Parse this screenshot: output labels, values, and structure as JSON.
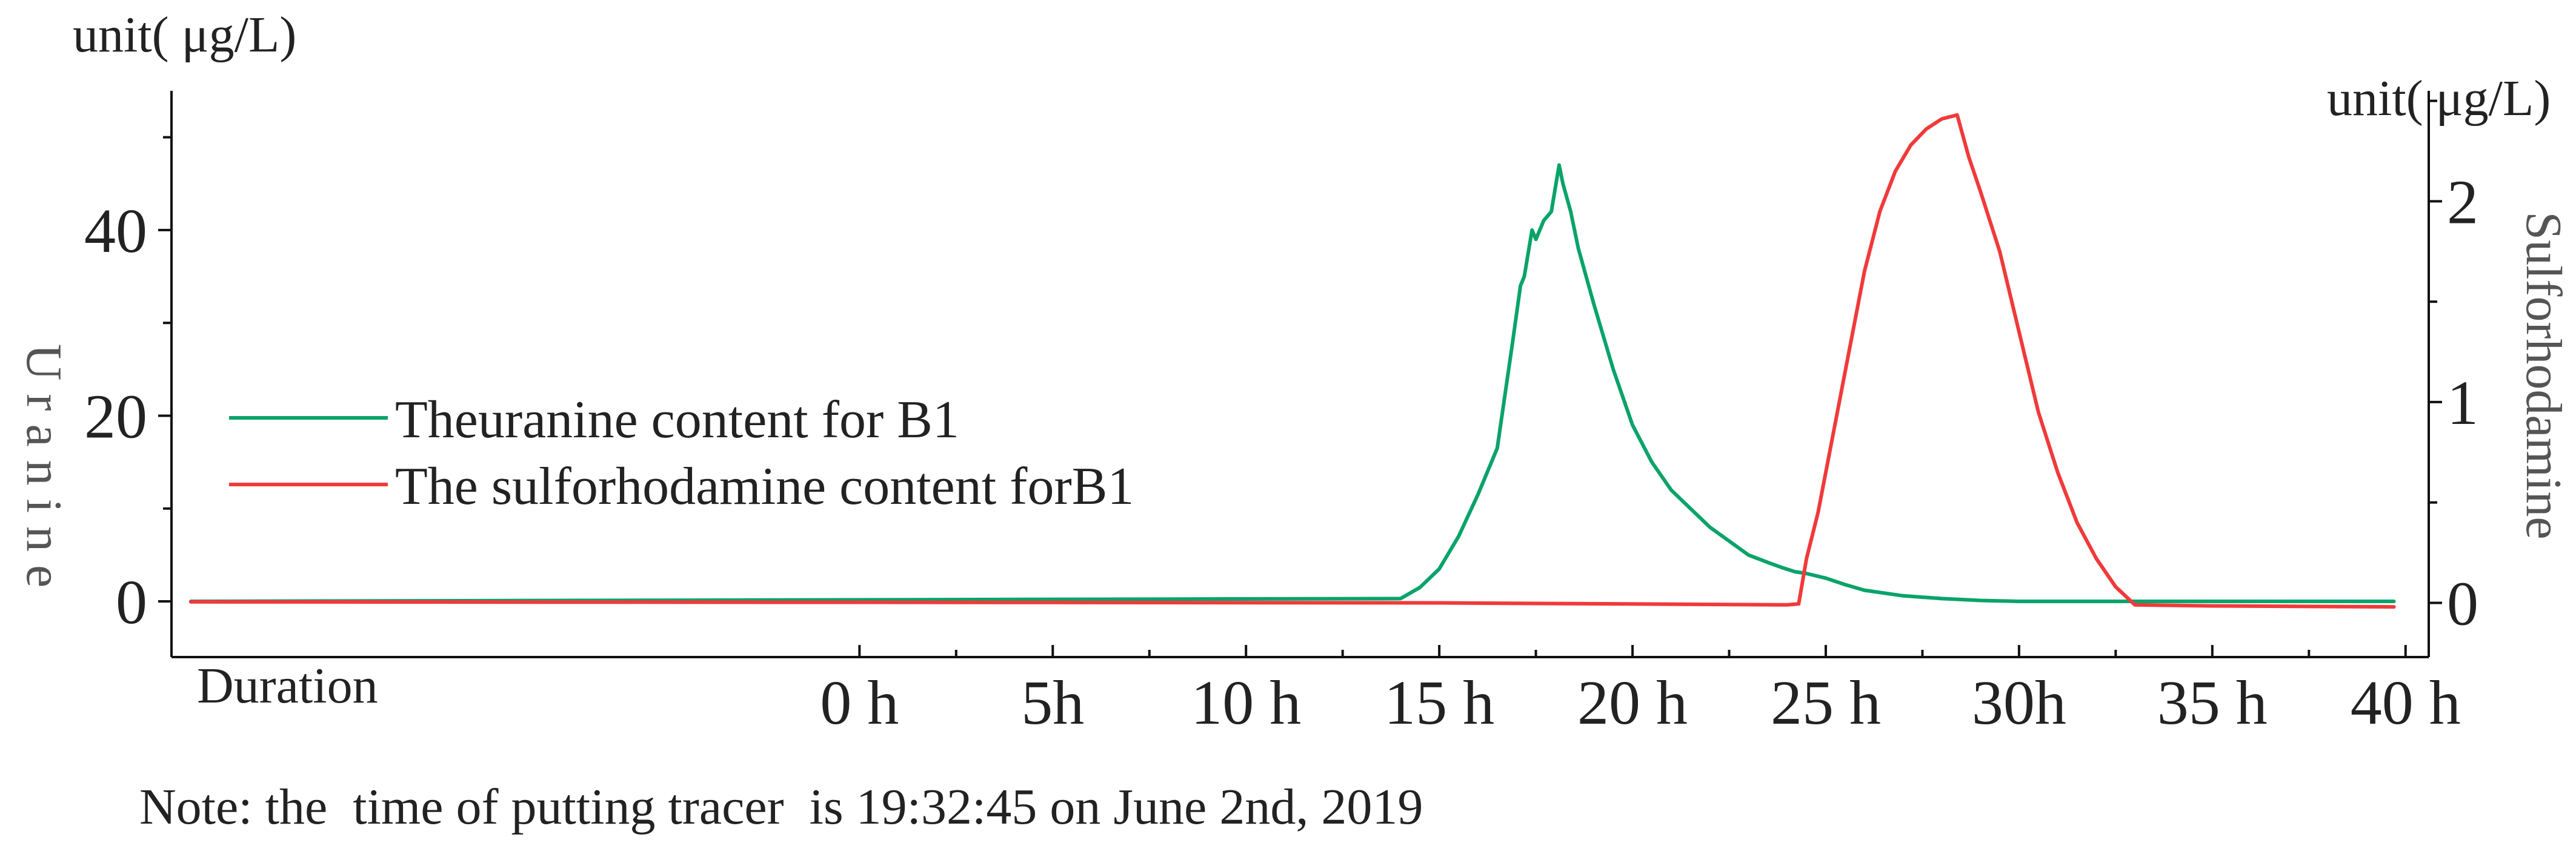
{
  "chart_data": {
    "type": "line",
    "left_unit": "unit( μg/L)",
    "right_unit": "unit( μg/L)",
    "left_axis_label": "Uranine",
    "right_axis_label": "Sulforhodamine",
    "x_axis_name": "Duration",
    "note": "Note: the  time of putting tracer  is 19:32:45 on June 2nd, 2019",
    "left_ylim": [
      -6,
      55
    ],
    "right_ylim": [
      -0.27,
      2.55
    ],
    "left_ticks": [
      0,
      20,
      40
    ],
    "left_tick_labels": [
      "0",
      "20",
      "40"
    ],
    "right_ticks": [
      0,
      1,
      2
    ],
    "right_tick_labels": [
      "0",
      "1",
      "2"
    ],
    "x_range": [
      -17.8,
      40.6
    ],
    "x_ticks": [
      0,
      5,
      10,
      15,
      20,
      25,
      30,
      35,
      40
    ],
    "x_tick_labels": [
      "0 h",
      "5h",
      "10 h",
      "15 h",
      "20 h",
      "25 h",
      "30h",
      "35 h",
      "40 h"
    ],
    "legend": [
      {
        "label": "Theuranine content for B1",
        "color": "#0aa36a"
      },
      {
        "label": "The sulforhodamine content forB1",
        "color": "#f03a3a"
      }
    ],
    "series": [
      {
        "name": "Theuranine content for B1",
        "axis": "left",
        "color": "#0aa36a",
        "x": [
          -17.3,
          14.0,
          14.5,
          15.0,
          15.5,
          16.0,
          16.5,
          16.9,
          17.1,
          17.2,
          17.4,
          17.5,
          17.7,
          17.9,
          18.1,
          18.2,
          18.4,
          18.6,
          19.0,
          19.5,
          20.0,
          20.5,
          21.0,
          21.5,
          22.0,
          22.5,
          23.0,
          23.5,
          23.9,
          24.2,
          24.5,
          25.0,
          25.5,
          26.0,
          27.0,
          28.0,
          29.0,
          30.0,
          35.0,
          39.7
        ],
        "y": [
          0,
          0.3,
          1.5,
          3.5,
          7,
          11.5,
          16.5,
          28,
          34,
          35,
          40,
          39,
          41,
          42,
          47,
          45,
          42,
          38,
          32,
          25,
          19,
          15,
          12,
          10,
          8,
          6.5,
          5,
          4.2,
          3.6,
          3.2,
          3.0,
          2.5,
          1.8,
          1.2,
          0.6,
          0.3,
          0.1,
          0,
          0,
          0
        ]
      },
      {
        "name": "The sulforhodamine content forB1",
        "axis": "right",
        "color": "#f03a3a",
        "x": [
          -17.3,
          5.0,
          15.0,
          24.0,
          24.3,
          24.5,
          24.8,
          25.2,
          25.6,
          26.0,
          26.4,
          26.8,
          27.2,
          27.6,
          28.0,
          28.4,
          28.7,
          29.0,
          29.5,
          30.0,
          30.5,
          31.0,
          31.5,
          32.0,
          32.5,
          33.0,
          35.0,
          39.7
        ],
        "y": [
          0.005,
          0.002,
          0.0,
          -0.01,
          -0.005,
          0.22,
          0.45,
          0.85,
          1.25,
          1.65,
          1.95,
          2.15,
          2.28,
          2.36,
          2.41,
          2.43,
          2.22,
          2.05,
          1.75,
          1.35,
          0.95,
          0.65,
          0.4,
          0.22,
          0.08,
          -0.01,
          -0.015,
          -0.02
        ]
      }
    ]
  }
}
